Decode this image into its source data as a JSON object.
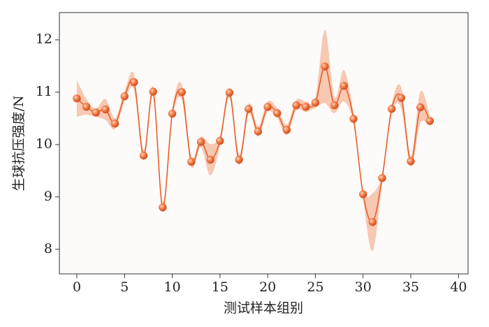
{
  "chart_data": {
    "type": "line",
    "x_label": "测试样本组别",
    "y_label": "生球抗压强度/N",
    "x": [
      0,
      1,
      2,
      3,
      4,
      5,
      6,
      7,
      8,
      9,
      10,
      11,
      12,
      13,
      14,
      15,
      16,
      17,
      18,
      19,
      20,
      21,
      22,
      23,
      24,
      25,
      26,
      27,
      28,
      29,
      30,
      31,
      32,
      33,
      34,
      35,
      36,
      37
    ],
    "values": [
      10.88,
      10.72,
      10.61,
      10.67,
      10.4,
      10.92,
      11.19,
      9.79,
      11.01,
      8.8,
      10.59,
      11.0,
      9.67,
      10.05,
      9.71,
      10.07,
      10.99,
      9.71,
      10.68,
      10.25,
      10.72,
      10.6,
      10.28,
      10.75,
      10.72,
      10.8,
      11.49,
      10.75,
      11.12,
      10.49,
      9.05,
      8.52,
      9.36,
      10.68,
      10.89,
      9.68,
      10.71,
      10.45
    ],
    "errors": [
      0.35,
      0.15,
      0.08,
      0.2,
      0.1,
      0.1,
      0.15,
      0.1,
      0.1,
      0.1,
      0.1,
      0.15,
      0.1,
      0.1,
      0.3,
      0.1,
      0.1,
      0.1,
      0.1,
      0.1,
      0.1,
      0.1,
      0.1,
      0.1,
      0.1,
      0.1,
      0.7,
      0.15,
      0.3,
      0.1,
      0.1,
      0.55,
      0.1,
      0.1,
      0.2,
      0.1,
      0.3,
      0.1
    ],
    "color": "#e8602c",
    "band_color": "#f4a682",
    "xlim": [
      -1.83,
      41.0
    ],
    "ylim": [
      7.53,
      12.52
    ],
    "xticks": [
      0,
      5,
      10,
      15,
      20,
      25,
      30,
      35,
      40
    ],
    "yticks": [
      8,
      9,
      10,
      11,
      12
    ]
  }
}
